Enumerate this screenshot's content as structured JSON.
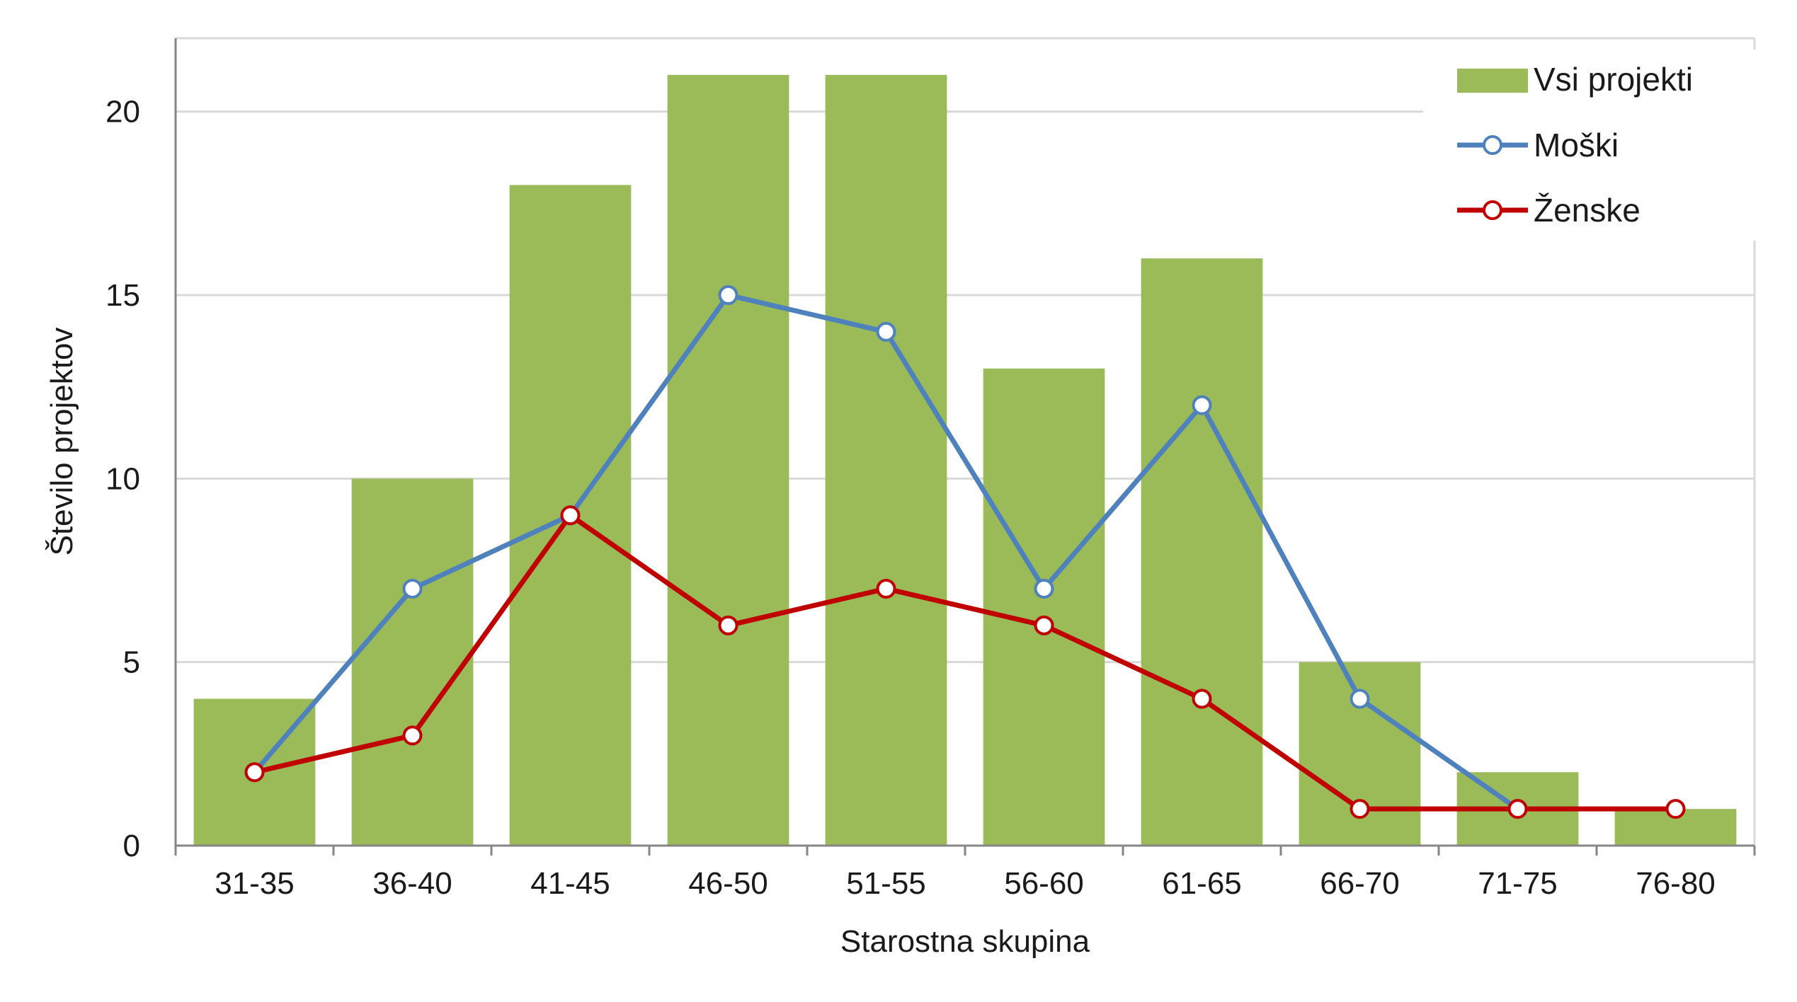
{
  "colors": {
    "bars": "#9BBB59",
    "male_line": "#4F81BD",
    "female_line": "#C00000",
    "grid": "#D9D9D9",
    "axis": "#868686",
    "marker_fill": "#ffffff"
  },
  "chart_data": {
    "type": "bar",
    "title": "",
    "xlabel": "Starostna skupina",
    "ylabel": "Število projektov",
    "ylim": [
      0,
      22
    ],
    "y_ticks": [
      0,
      5,
      10,
      15,
      20
    ],
    "grid": true,
    "legend_position": "top-right",
    "categories": [
      "31-35",
      "36-40",
      "41-45",
      "46-50",
      "51-55",
      "56-60",
      "61-65",
      "66-70",
      "71-75",
      "76-80"
    ],
    "series": [
      {
        "name": "Vsi projekti",
        "kind": "bar",
        "values": [
          4,
          10,
          18,
          21,
          21,
          13,
          16,
          5,
          2,
          1
        ]
      },
      {
        "name": "Moški",
        "kind": "line",
        "values": [
          2,
          7,
          9,
          15,
          14,
          7,
          12,
          4,
          1,
          null
        ]
      },
      {
        "name": "Ženske",
        "kind": "line",
        "values": [
          2,
          3,
          9,
          6,
          7,
          6,
          4,
          1,
          1,
          1
        ]
      }
    ]
  }
}
